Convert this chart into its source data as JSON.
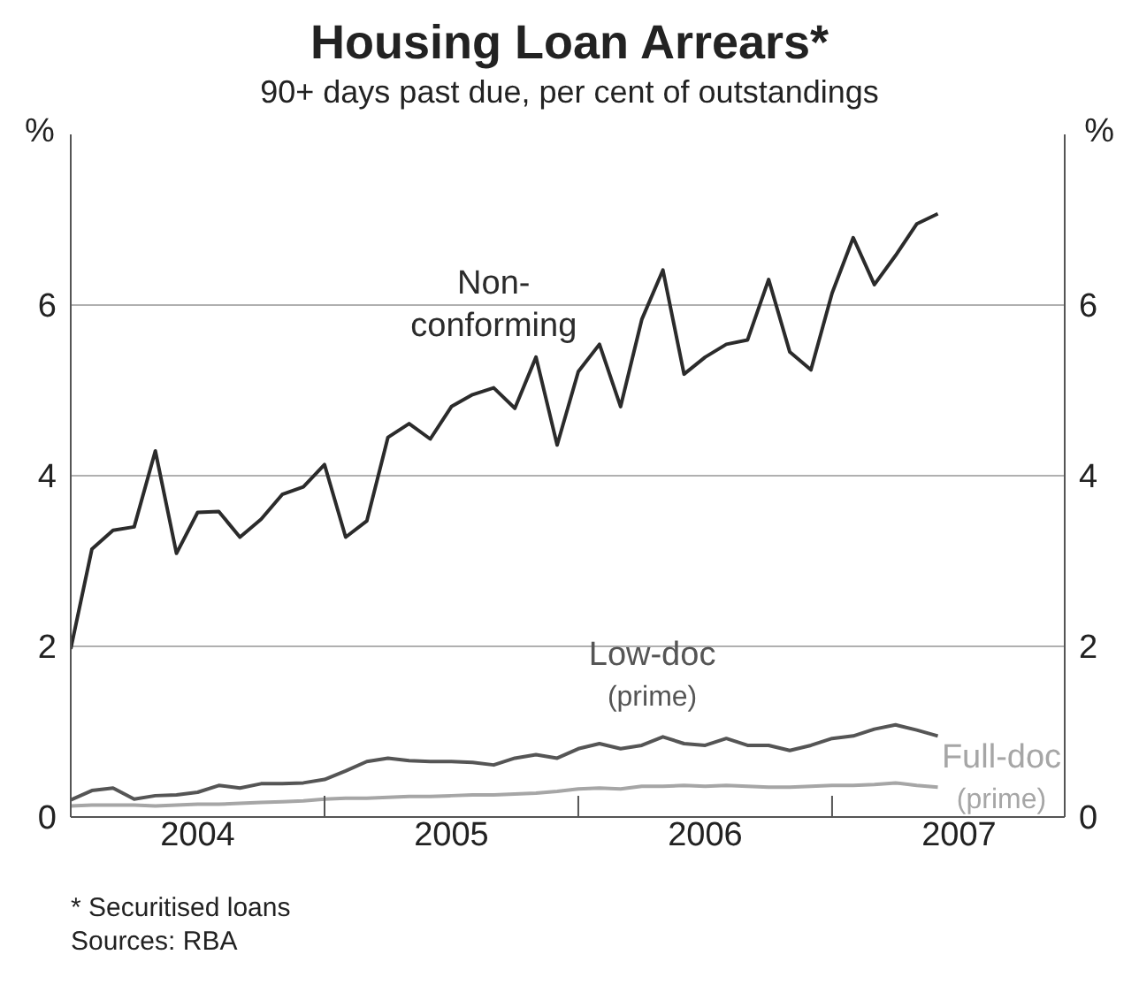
{
  "chart_data": {
    "type": "line",
    "title": "Housing Loan Arrears*",
    "subtitle": "90+ days past due, per cent of outstandings",
    "ylabel": "%",
    "y2label": "%",
    "x": [
      "2004-01",
      "2004-02",
      "2004-03",
      "2004-04",
      "2004-05",
      "2004-06",
      "2004-07",
      "2004-08",
      "2004-09",
      "2004-10",
      "2004-11",
      "2004-12",
      "2005-01",
      "2005-02",
      "2005-03",
      "2005-04",
      "2005-05",
      "2005-06",
      "2005-07",
      "2005-08",
      "2005-09",
      "2005-10",
      "2005-11",
      "2005-12",
      "2006-01",
      "2006-02",
      "2006-03",
      "2006-04",
      "2006-05",
      "2006-06",
      "2006-07",
      "2006-08",
      "2006-09",
      "2006-10",
      "2006-11",
      "2006-12",
      "2007-01",
      "2007-02",
      "2007-03",
      "2007-04",
      "2007-05",
      "2007-06"
    ],
    "series": [
      {
        "name": "Non-conforming",
        "color": "#2b2b2b",
        "values": [
          1.97,
          3.14,
          3.36,
          3.4,
          4.29,
          3.09,
          3.57,
          3.58,
          3.28,
          3.49,
          3.78,
          3.87,
          4.13,
          3.28,
          3.47,
          4.45,
          4.61,
          4.43,
          4.81,
          4.95,
          5.03,
          4.79,
          5.39,
          4.36,
          5.22,
          5.54,
          4.81,
          5.83,
          6.41,
          5.19,
          5.39,
          5.54,
          5.59,
          6.3,
          5.45,
          5.24,
          6.14,
          6.79,
          6.24,
          6.58,
          6.95,
          7.07
        ]
      },
      {
        "name": "Low-doc (prime)",
        "color": "#555555",
        "values": [
          0.2,
          0.31,
          0.34,
          0.21,
          0.25,
          0.26,
          0.29,
          0.37,
          0.34,
          0.39,
          0.39,
          0.4,
          0.44,
          0.54,
          0.65,
          0.69,
          0.66,
          0.65,
          0.65,
          0.64,
          0.61,
          0.69,
          0.73,
          0.69,
          0.8,
          0.86,
          0.8,
          0.84,
          0.94,
          0.86,
          0.84,
          0.92,
          0.84,
          0.84,
          0.78,
          0.84,
          0.92,
          0.95,
          1.03,
          1.08,
          1.02,
          0.95
        ]
      },
      {
        "name": "Full-doc (prime)",
        "color": "#a6a6a6",
        "values": [
          0.13,
          0.14,
          0.14,
          0.14,
          0.13,
          0.14,
          0.15,
          0.15,
          0.16,
          0.17,
          0.18,
          0.19,
          0.21,
          0.22,
          0.22,
          0.23,
          0.24,
          0.24,
          0.25,
          0.26,
          0.26,
          0.27,
          0.28,
          0.3,
          0.33,
          0.34,
          0.33,
          0.36,
          0.36,
          0.37,
          0.36,
          0.37,
          0.36,
          0.35,
          0.35,
          0.36,
          0.37,
          0.37,
          0.38,
          0.4,
          0.37,
          0.35
        ]
      }
    ],
    "xlim": [
      "2004-01",
      "2007-12"
    ],
    "xticks": [
      {
        "value": "2004-07",
        "label": "2004"
      },
      {
        "value": "2005-01",
        "label": null
      },
      {
        "value": "2005-07",
        "label": "2005"
      },
      {
        "value": "2006-01",
        "label": null
      },
      {
        "value": "2006-07",
        "label": "2006"
      },
      {
        "value": "2007-01",
        "label": null
      },
      {
        "value": "2007-07",
        "label": "2007"
      }
    ],
    "ylim": [
      0,
      8
    ],
    "yticks": [
      0,
      2,
      4,
      6
    ],
    "y2lim": [
      0,
      8
    ],
    "y2ticks": [
      0,
      2,
      4,
      6
    ],
    "grid": "y",
    "legend": false,
    "marker": "none",
    "line_style": "solid",
    "annotations": [
      "*  Securitised loans",
      "Sources: RBA"
    ]
  }
}
